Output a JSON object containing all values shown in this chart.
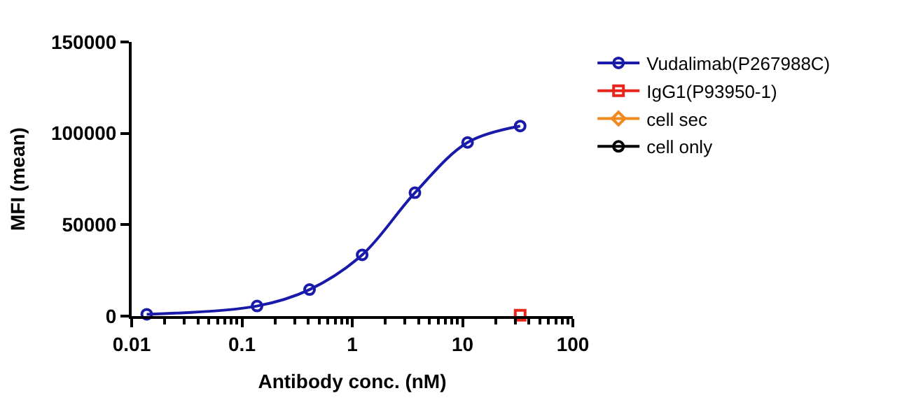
{
  "chart_data": {
    "type": "line",
    "xlabel": "Antibody conc. (nM)",
    "ylabel": "MFI (mean)",
    "log": "x",
    "xlim": [
      0.01,
      100
    ],
    "xticks": [
      0.01,
      0.1,
      1,
      10,
      100
    ],
    "ylim": [
      0,
      150000
    ],
    "yticks": [
      0,
      50000,
      100000,
      150000
    ],
    "legend": "right",
    "series": [
      {
        "name": "Vudalimab(P267988C)",
        "color": "#1a1aaa",
        "marker": "circle",
        "x": [
          0.0137,
          0.137,
          0.41,
          1.23,
          3.7,
          11.1,
          33.3
        ],
        "values": [
          1000,
          5500,
          14500,
          33500,
          67500,
          95000,
          104000
        ]
      },
      {
        "name": "IgG1(P93950-1)",
        "color": "#e8251c",
        "marker": "square",
        "x": [
          33.3
        ],
        "values": [
          500
        ]
      },
      {
        "name": "cell sec",
        "color": "#f08a1c",
        "marker": "diamond"
      },
      {
        "name": "cell only",
        "color": "#000000",
        "marker": "circle"
      }
    ]
  }
}
